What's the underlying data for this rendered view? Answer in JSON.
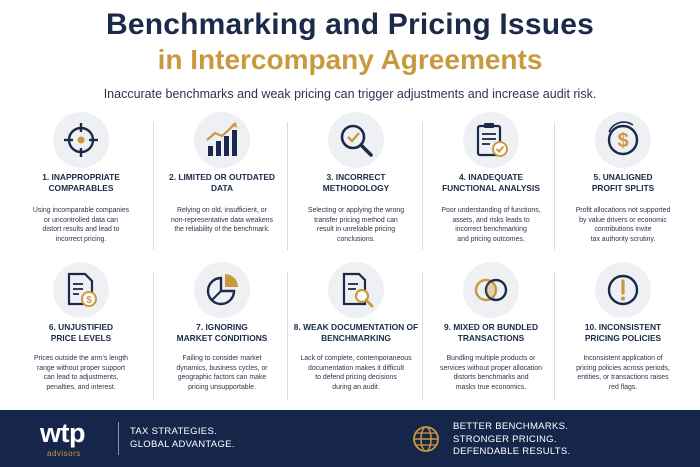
{
  "header": {
    "title_line1": "Benchmarking and Pricing Issues",
    "title_line2": "in Intercompany Agreements",
    "subtitle": "Inaccurate benchmarks and weak pricing can trigger adjustments and increase audit risk."
  },
  "colors": {
    "navy": "#1b2a4a",
    "gold": "#c9993e",
    "footer_bg": "#16264a"
  },
  "cards": [
    {
      "icon": "target-crosshair-icon",
      "title": "1. INAPPROPRIATE\nCOMPARABLES",
      "desc": "Using incomparable companies\nor uncontrolled data can\ndistort results and lead to\nincorrect pricing."
    },
    {
      "icon": "bar-chart-growth-icon",
      "title": "2. LIMITED OR OUTDATED\nDATA",
      "desc": "Relying on old, insufficient, or\nnon-representative data weakens\nthe reliability of the benchmark."
    },
    {
      "icon": "magnifier-check-icon",
      "title": "3. INCORRECT\nMETHODOLOGY",
      "desc": "Selecting or applying the wrong\ntransfer pricing method can\nresult in unreliable pricing\nconclusions."
    },
    {
      "icon": "clipboard-check-icon",
      "title": "4. INADEQUATE\nFUNCTIONAL ANALYSIS",
      "desc": "Poor understanding of functions,\nassets, and risks leads to\nincorrect benchmarking\nand pricing outcomes."
    },
    {
      "icon": "dollar-circle-icon",
      "title": "5. UNALIGNED\nPROFIT SPLITS",
      "desc": "Profit allocations not supported\nby value drivers or economic\ncontributions invite\ntax authority scrutiny."
    },
    {
      "icon": "document-dollar-icon",
      "title": "6. UNJUSTIFIED\nPRICE LEVELS",
      "desc": "Prices outside the arm's length\nrange without proper support\ncan lead to adjustments,\npenalties, and interest."
    },
    {
      "icon": "pie-chart-icon",
      "title": "7. IGNORING\nMARKET CONDITIONS",
      "desc": "Failing to consider market\ndynamics, business cycles, or\ngeographic factors can make\npricing unsupportable."
    },
    {
      "icon": "document-search-icon",
      "title": "8. WEAK DOCUMENTATION OF\nBENCHMARKING",
      "desc": "Lack of complete, contemporaneous\ndocumentation makes it difficult\nto defend pricing decisions\nduring an audit."
    },
    {
      "icon": "overlapping-circles-icon",
      "title": "9. MIXED OR BUNDLED\nTRANSACTIONS",
      "desc": "Bundling multiple products or\nservices without proper allocation\ndistorts benchmarks and\nmasks true economics."
    },
    {
      "icon": "warning-circle-icon",
      "title": "10. INCONSISTENT\nPRICING POLICIES",
      "desc": "Inconsistent application of\npricing policies across periods,\nentities, or transactions raises\nred flags."
    }
  ],
  "footer": {
    "logo": "wtp",
    "logo_sub": "advisors",
    "tagline_left": "TAX STRATEGIES.\nGLOBAL ADVANTAGE.",
    "tagline_right": "BETTER BENCHMARKS.\nSTRONGER PRICING.\nDEFENDABLE RESULTS."
  }
}
